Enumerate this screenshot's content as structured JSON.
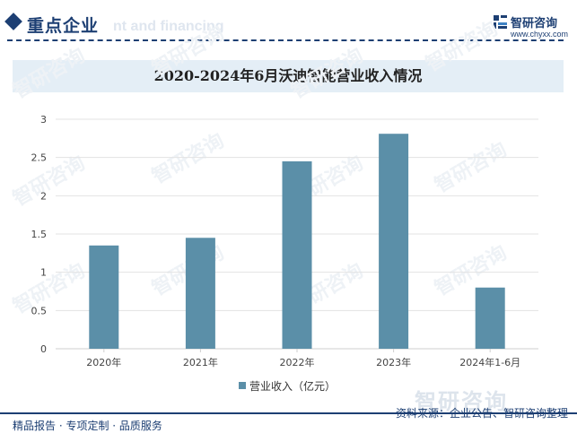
{
  "header": {
    "title": "重点企业",
    "ghost_text": "nt and financing"
  },
  "logo": {
    "name": "智研咨询",
    "url": "www.chyxx.com"
  },
  "chart_data": {
    "type": "bar",
    "title": "2020-2024年6月沃迪智能营业收入情况",
    "categories": [
      "2020年",
      "2021年",
      "2022年",
      "2023年",
      "2024年1-6月"
    ],
    "series": [
      {
        "name": "营业收入（亿元）",
        "values": [
          1.35,
          1.45,
          2.45,
          2.81,
          0.8
        ]
      }
    ],
    "ylim": [
      0,
      3
    ],
    "yticks": [
      "0",
      "0.5",
      "1",
      "1.5",
      "2",
      "2.5",
      "3"
    ],
    "xlabel": "",
    "ylabel": "",
    "grid": true,
    "legend": "bottom-center",
    "colors": {
      "bar": "#5b8fa8",
      "grid": "#e3e3e3",
      "axis": "#cfcfcf"
    }
  },
  "watermark": {
    "text": "智研咨询"
  },
  "footer": {
    "left": "精品报告 · 专项定制 · 品质服务",
    "source": "资料来源：企业公告、智研咨询整理"
  }
}
